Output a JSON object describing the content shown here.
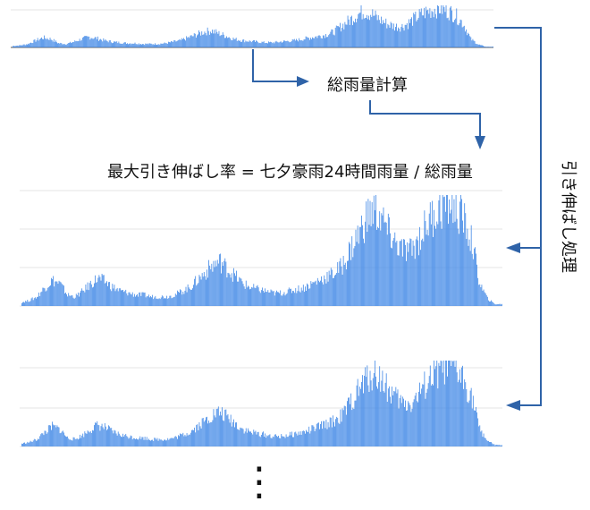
{
  "labels": {
    "total_rainfall_calc": "総雨量計算",
    "max_stretch_formula": "最大引き伸ばし率 = 七夕豪雨24時間雨量 / 総雨量",
    "stretch_process": "引き伸ばし処理",
    "ellipsis": "⋮"
  },
  "colors": {
    "bar": "#3f87e6",
    "arrow": "#2f63a8",
    "grid": "#e6e6e6",
    "axis": "#555555"
  },
  "chart_data": [
    {
      "type": "bar",
      "role": "original-hyetograph",
      "description_values": [
        2,
        3,
        5,
        10,
        14,
        12,
        6,
        5,
        8,
        12,
        15,
        13,
        10,
        8,
        7,
        6,
        6,
        5,
        5,
        5,
        6,
        8,
        10,
        14,
        18,
        22,
        24,
        20,
        16,
        12,
        10,
        9,
        8,
        7,
        7,
        8,
        9,
        10,
        12,
        14,
        16,
        18,
        22,
        30,
        38,
        46,
        52,
        48,
        40,
        34,
        30,
        30,
        36,
        44,
        50,
        54,
        56,
        52,
        46,
        34,
        12,
        4,
        1
      ],
      "ylim": [
        0,
        60
      ]
    },
    {
      "type": "bar",
      "role": "stretched-hyetograph-1",
      "description_values": [
        2,
        3,
        5,
        10,
        14,
        12,
        6,
        5,
        8,
        12,
        15,
        13,
        10,
        8,
        7,
        6,
        6,
        5,
        5,
        5,
        6,
        8,
        10,
        14,
        18,
        22,
        24,
        20,
        16,
        12,
        10,
        9,
        8,
        7,
        7,
        8,
        9,
        10,
        12,
        14,
        16,
        18,
        22,
        30,
        38,
        46,
        52,
        48,
        40,
        34,
        30,
        30,
        36,
        44,
        50,
        54,
        56,
        52,
        46,
        34,
        12,
        4,
        1
      ],
      "ylim": [
        0,
        60
      ]
    },
    {
      "type": "bar",
      "role": "stretched-hyetograph-2",
      "description_values": [
        2,
        3,
        5,
        10,
        14,
        12,
        6,
        5,
        8,
        12,
        15,
        13,
        10,
        8,
        7,
        6,
        6,
        5,
        5,
        5,
        6,
        8,
        10,
        14,
        18,
        22,
        24,
        20,
        16,
        12,
        10,
        9,
        8,
        7,
        7,
        8,
        9,
        10,
        12,
        14,
        16,
        18,
        22,
        30,
        38,
        46,
        52,
        48,
        40,
        34,
        30,
        30,
        36,
        44,
        50,
        54,
        56,
        52,
        46,
        34,
        12,
        4,
        1
      ],
      "ylim": [
        0,
        60
      ]
    }
  ]
}
